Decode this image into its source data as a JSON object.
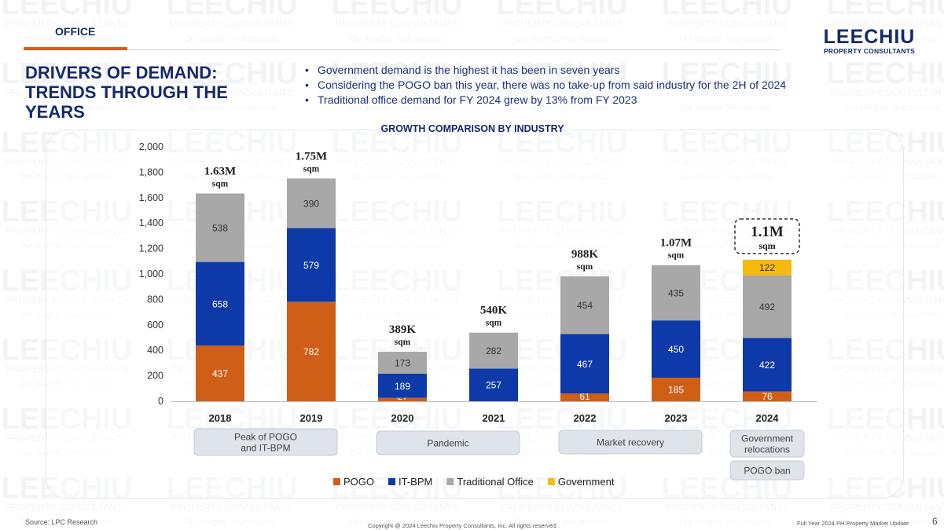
{
  "header": {
    "section_label": "OFFICE",
    "logo_name": "LEECHIU",
    "logo_subtitle": "PROPERTY CONSULTANTS",
    "title": "DRIVERS OF DEMAND: TRENDS THROUGH THE YEARS"
  },
  "bullets": [
    "Government demand is the highest it has been in seven years",
    "Considering the POGO ban this year, there was no take-up from said industry for the 2H of 2024",
    "Traditional office demand for FY 2024 grew by 13% from FY 2023"
  ],
  "watermark": {
    "name": "LEECHIU",
    "subtitle": "PROPERTY CONSULTANTS",
    "tagline": "Our insights. Your success."
  },
  "chart_data": {
    "type": "bar",
    "stacked": true,
    "title": "GROWTH COMPARISON BY INDUSTRY",
    "categories": [
      "2018",
      "2019",
      "2020",
      "2021",
      "2022",
      "2023",
      "2024"
    ],
    "series": [
      {
        "name": "POGO",
        "values": [
          437,
          782,
          27,
          0,
          61,
          185,
          76
        ]
      },
      {
        "name": "IT-BPM",
        "values": [
          658,
          579,
          189,
          257,
          467,
          450,
          422
        ]
      },
      {
        "name": "Traditional Office",
        "values": [
          538,
          390,
          173,
          282,
          454,
          435,
          492
        ]
      },
      {
        "name": "Government",
        "values": [
          0,
          0,
          0,
          0,
          0,
          0,
          122
        ]
      }
    ],
    "totals": [
      {
        "value": "1.63M",
        "unit": "sqm"
      },
      {
        "value": "1.75M",
        "unit": "sqm"
      },
      {
        "value": "389K",
        "unit": "sqm"
      },
      {
        "value": "540K",
        "unit": "sqm"
      },
      {
        "value": "988K",
        "unit": "sqm"
      },
      {
        "value": "1.07M",
        "unit": "sqm"
      },
      {
        "value": "1.1M",
        "unit": "sqm"
      }
    ],
    "yticks": [
      "0",
      "200",
      "400",
      "600",
      "800",
      "1,000",
      "1,200",
      "1,400",
      "1,600",
      "1,800",
      "2,000"
    ],
    "ylim": [
      0,
      2000
    ],
    "legend": "bottom",
    "annotations": [
      {
        "text": [
          "Peak of POGO",
          "and IT-BPM"
        ],
        "from": 0,
        "to": 1
      },
      {
        "text": [
          "Pandemic"
        ],
        "from": 2,
        "to": 3
      },
      {
        "text": [
          "Market recovery"
        ],
        "from": 4,
        "to": 5
      },
      {
        "text": [
          "Government",
          "relocations"
        ],
        "from": 6,
        "to": 6
      },
      {
        "text": [
          "POGO ban"
        ],
        "from": 6,
        "to": 6
      }
    ]
  },
  "colors": {
    "POGO": "#cf5f17",
    "IT-BPM": "#0d3aa8",
    "Traditional Office": "#a8a8a8",
    "Government": "#f5b90f",
    "accent": "#d35f1f",
    "navy": "#152a6b"
  },
  "footer": {
    "source": "Source: LPC Research",
    "copyright": "Copyright @ 2024 Leechiu Property Consultants, Inc. All rights reserved.",
    "report": "Full Year 2024 PH Property Market Update",
    "page": "6"
  }
}
